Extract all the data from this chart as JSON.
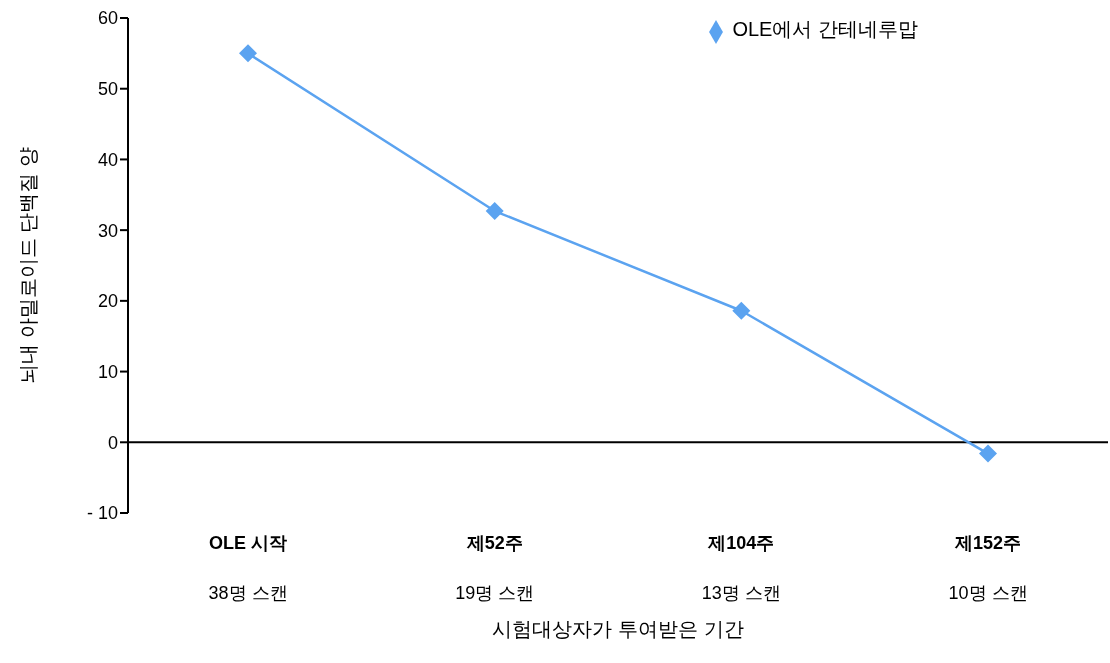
{
  "chart_data": {
    "type": "line",
    "xlabel": "시험대상자가 투여받은 기간",
    "ylabel": "뇌내 아밀로이드 단백질 양",
    "categories": [
      "OLE 시작\n38명 스캔",
      "제52주\n19명 스캔",
      "제104주\n13명 스캔",
      "제152주\n10명 스캔"
    ],
    "series": [
      {
        "name": "OLE에서 간테네루맙",
        "color": "#5ba3f0",
        "values": [
          55,
          32.7,
          18.6,
          -1.6
        ]
      }
    ],
    "ylim": [
      -10,
      60
    ],
    "yticks": [
      {
        "value": -10,
        "label": "- 10"
      },
      0,
      10,
      20,
      30,
      40,
      50,
      60
    ],
    "ref_lines": [
      {
        "axis": "y",
        "value": 0,
        "color": "#000000"
      }
    ],
    "grid": false,
    "legend": "top right",
    "marker": "diamond",
    "line_style": "solid"
  }
}
